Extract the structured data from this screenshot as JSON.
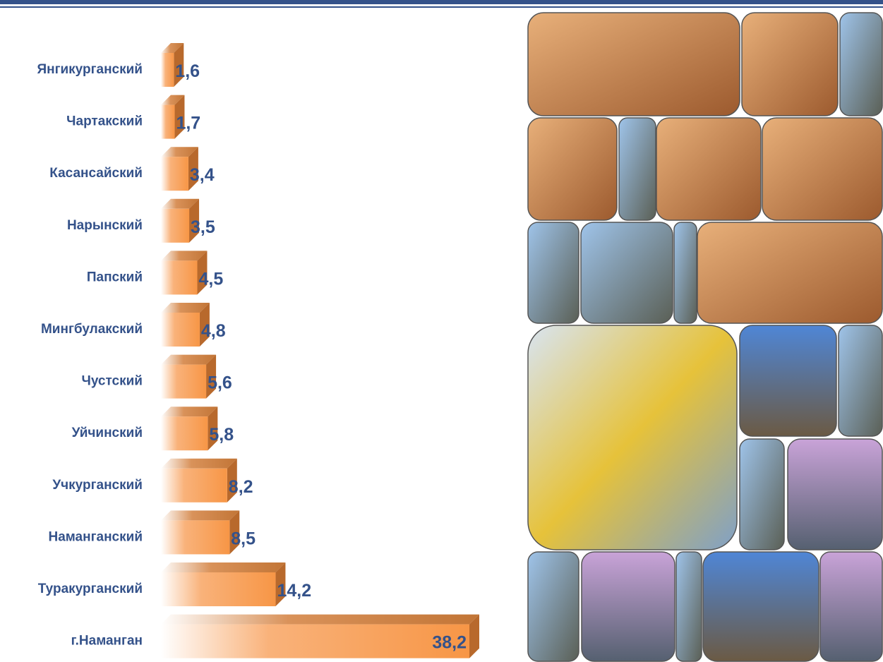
{
  "chart_data": {
    "type": "bar",
    "orientation": "horizontal",
    "categories": [
      "Янгикурганский",
      "Чартакский",
      "Касансайский",
      "Нарынский",
      "Папский",
      "Мингбулакский",
      "Чустский",
      "Уйчинский",
      "Учкурганский",
      "Наманганский",
      "Туракурганский",
      "г.Наманган"
    ],
    "values": [
      1.6,
      1.7,
      3.4,
      3.5,
      4.5,
      4.8,
      5.6,
      5.8,
      8.2,
      8.5,
      14.2,
      38.2
    ],
    "value_labels": [
      "1,6",
      "1,7",
      "3,4",
      "3,5",
      "4,5",
      "4,8",
      "5,6",
      "5,8",
      "8,2",
      "8,5",
      "14,2",
      "38,2"
    ],
    "color": "#f79646"
  }
}
